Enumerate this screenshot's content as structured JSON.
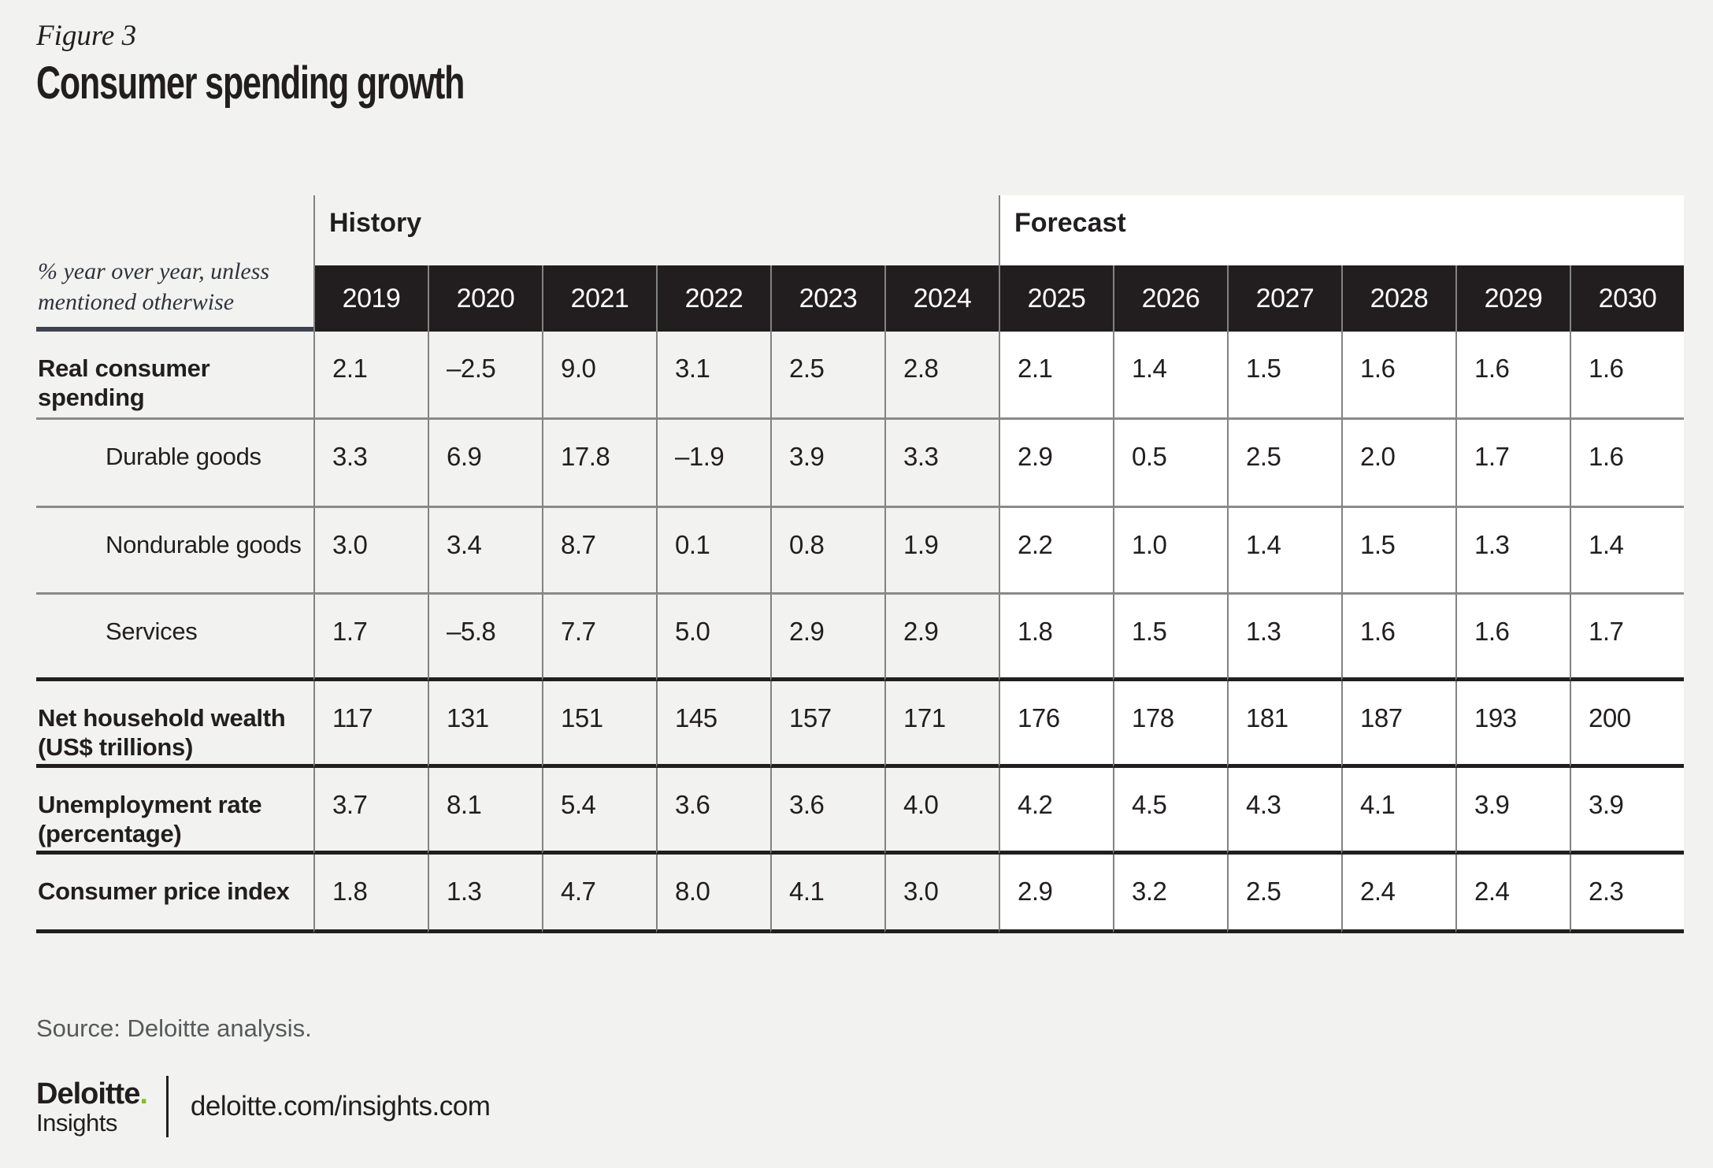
{
  "page": {
    "figure_label": "Figure 3",
    "title": "Consumer spending growth",
    "source": "Source: Deloitte analysis.",
    "logo": {
      "brand": "Deloitte",
      "dot": ".",
      "sub": "Insights",
      "url": "deloitte.com/insights.com"
    },
    "colors": {
      "background": "#f2f3f1",
      "header_bg": "#221e1f",
      "header_text": "#ffffff",
      "forecast_bg": "#ffffff",
      "thin_line": "#8a8a8a",
      "thick_line": "#221e1f",
      "source_text": "#57595b",
      "deloitte_green": "#86bc25"
    }
  },
  "table": {
    "note": "% year over year, unless mentioned otherwise",
    "sections": {
      "history": "History",
      "forecast": "Forecast"
    },
    "years": [
      "2019",
      "2020",
      "2021",
      "2022",
      "2023",
      "2024",
      "2025",
      "2026",
      "2027",
      "2028",
      "2029",
      "2030"
    ],
    "rows": [
      {
        "label": "Real consumer spending",
        "values": [
          "2.1",
          "–2.5",
          "9.0",
          "3.1",
          "2.5",
          "2.8",
          "2.1",
          "1.4",
          "1.5",
          "1.6",
          "1.6",
          "1.6"
        ]
      },
      {
        "label": "Durable goods",
        "values": [
          "3.3",
          "6.9",
          "17.8",
          "–1.9",
          "3.9",
          "3.3",
          "2.9",
          "0.5",
          "2.5",
          "2.0",
          "1.7",
          "1.6"
        ]
      },
      {
        "label": "Nondurable goods",
        "values": [
          "3.0",
          "3.4",
          "8.7",
          "0.1",
          "0.8",
          "1.9",
          "2.2",
          "1.0",
          "1.4",
          "1.5",
          "1.3",
          "1.4"
        ]
      },
      {
        "label": "Services",
        "values": [
          "1.7",
          "–5.8",
          "7.7",
          "5.0",
          "2.9",
          "2.9",
          "1.8",
          "1.5",
          "1.3",
          "1.6",
          "1.6",
          "1.7"
        ]
      },
      {
        "label": "Net household wealth (US$ trillions)",
        "values": [
          "117",
          "131",
          "151",
          "145",
          "157",
          "171",
          "176",
          "178",
          "181",
          "187",
          "193",
          "200"
        ]
      },
      {
        "label": "Unemployment rate (percentage)",
        "values": [
          "3.7",
          "8.1",
          "5.4",
          "3.6",
          "3.6",
          "4.0",
          "4.2",
          "4.5",
          "4.3",
          "4.1",
          "3.9",
          "3.9"
        ]
      },
      {
        "label": "Consumer price index",
        "values": [
          "1.8",
          "1.3",
          "4.7",
          "8.0",
          "4.1",
          "3.0",
          "2.9",
          "3.2",
          "2.5",
          "2.4",
          "2.4",
          "2.3"
        ]
      }
    ]
  },
  "chart_data": {
    "type": "table",
    "figure_label": "Figure 3",
    "title": "Consumer spending growth",
    "unit_note": "% year over year, unless mentioned otherwise",
    "years": [
      2019,
      2020,
      2021,
      2022,
      2023,
      2024,
      2025,
      2026,
      2027,
      2028,
      2029,
      2030
    ],
    "column_groups": [
      {
        "name": "History",
        "years": [
          2019,
          2020,
          2021,
          2022,
          2023,
          2024
        ]
      },
      {
        "name": "Forecast",
        "years": [
          2025,
          2026,
          2027,
          2028,
          2029,
          2030
        ]
      }
    ],
    "rows": [
      {
        "label": "Real consumer spending",
        "indent": false,
        "values": [
          2.1,
          -2.5,
          9.0,
          3.1,
          2.5,
          2.8,
          2.1,
          1.4,
          1.5,
          1.6,
          1.6,
          1.6
        ]
      },
      {
        "label": "Durable goods",
        "indent": true,
        "values": [
          3.3,
          6.9,
          17.8,
          -1.9,
          3.9,
          3.3,
          2.9,
          0.5,
          2.5,
          2.0,
          1.7,
          1.6
        ]
      },
      {
        "label": "Nondurable goods",
        "indent": true,
        "values": [
          3.0,
          3.4,
          8.7,
          0.1,
          0.8,
          1.9,
          2.2,
          1.0,
          1.4,
          1.5,
          1.3,
          1.4
        ]
      },
      {
        "label": "Services",
        "indent": true,
        "values": [
          1.7,
          -5.8,
          7.7,
          5.0,
          2.9,
          2.9,
          1.8,
          1.5,
          1.3,
          1.6,
          1.6,
          1.7
        ]
      },
      {
        "label": "Net household wealth (US$ trillions)",
        "indent": false,
        "values": [
          117,
          131,
          151,
          145,
          157,
          171,
          176,
          178,
          181,
          187,
          193,
          200
        ]
      },
      {
        "label": "Unemployment rate (percentage)",
        "indent": false,
        "values": [
          3.7,
          8.1,
          5.4,
          3.6,
          3.6,
          4.0,
          4.2,
          4.5,
          4.3,
          4.1,
          3.9,
          3.9
        ]
      },
      {
        "label": "Consumer price index",
        "indent": false,
        "values": [
          1.8,
          1.3,
          4.7,
          8.0,
          4.1,
          3.0,
          2.9,
          3.2,
          2.5,
          2.4,
          2.4,
          2.3
        ]
      }
    ],
    "source": "Source: Deloitte analysis."
  }
}
